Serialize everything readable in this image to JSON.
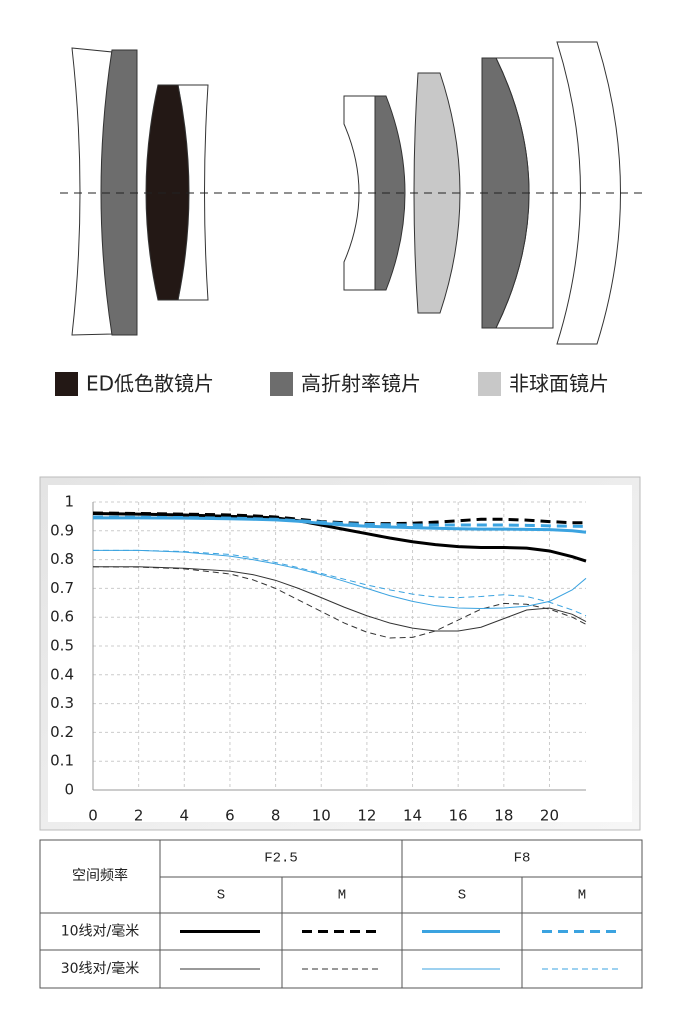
{
  "lens_legend": [
    {
      "label": "ED低色散镜片",
      "color": "#231815"
    },
    {
      "label": "高折射率镜片",
      "color": "#6d6d6d"
    },
    {
      "label": "非球面镜片",
      "color": "#c8c8c8"
    }
  ],
  "chart_data": {
    "type": "line",
    "x": [
      0,
      2,
      4,
      6,
      7,
      8,
      9,
      10,
      11,
      12,
      13,
      14,
      15,
      16,
      17,
      18,
      19,
      20,
      21,
      21.6
    ],
    "xlim": [
      0,
      21.6
    ],
    "xticks": [
      0,
      2,
      4,
      6,
      8,
      10,
      12,
      14,
      16,
      18,
      20
    ],
    "ylim": [
      0,
      1
    ],
    "yticks": [
      0,
      0.1,
      0.2,
      0.3,
      0.4,
      0.5,
      0.6,
      0.7,
      0.8,
      0.9,
      1
    ],
    "grid": true,
    "series": [
      {
        "color": "#000000",
        "width": 3,
        "line_style": "solid",
        "values": [
          0.96,
          0.958,
          0.955,
          0.95,
          0.948,
          0.945,
          0.935,
          0.92,
          0.905,
          0.89,
          0.875,
          0.862,
          0.852,
          0.845,
          0.842,
          0.842,
          0.84,
          0.83,
          0.81,
          0.795
        ]
      },
      {
        "color": "#000000",
        "width": 3,
        "line_style": "dashed",
        "values": [
          0.962,
          0.96,
          0.958,
          0.955,
          0.952,
          0.948,
          0.94,
          0.932,
          0.928,
          0.925,
          0.925,
          0.926,
          0.93,
          0.935,
          0.94,
          0.94,
          0.937,
          0.932,
          0.928,
          0.928
        ]
      },
      {
        "color": "#3ba3e0",
        "width": 3,
        "line_style": "solid",
        "values": [
          0.945,
          0.945,
          0.944,
          0.942,
          0.94,
          0.938,
          0.933,
          0.926,
          0.92,
          0.916,
          0.913,
          0.911,
          0.909,
          0.907,
          0.906,
          0.906,
          0.905,
          0.904,
          0.9,
          0.895
        ]
      },
      {
        "color": "#3ba3e0",
        "width": 3,
        "line_style": "dashed",
        "values": [
          0.948,
          0.947,
          0.946,
          0.944,
          0.942,
          0.94,
          0.935,
          0.93,
          0.925,
          0.922,
          0.921,
          0.92,
          0.92,
          0.92,
          0.92,
          0.92,
          0.919,
          0.917,
          0.916,
          0.915
        ]
      },
      {
        "color": "#333333",
        "width": 1,
        "line_style": "solid",
        "values": [
          0.775,
          0.775,
          0.77,
          0.76,
          0.748,
          0.728,
          0.7,
          0.668,
          0.635,
          0.605,
          0.58,
          0.562,
          0.552,
          0.552,
          0.565,
          0.595,
          0.625,
          0.632,
          0.61,
          0.585
        ]
      },
      {
        "color": "#333333",
        "width": 1,
        "line_style": "dashed",
        "values": [
          0.775,
          0.774,
          0.768,
          0.75,
          0.73,
          0.7,
          0.66,
          0.62,
          0.58,
          0.548,
          0.528,
          0.53,
          0.552,
          0.59,
          0.628,
          0.648,
          0.645,
          0.628,
          0.6,
          0.575
        ]
      },
      {
        "color": "#3ba3e0",
        "width": 1,
        "line_style": "solid",
        "values": [
          0.832,
          0.832,
          0.826,
          0.812,
          0.8,
          0.785,
          0.768,
          0.748,
          0.725,
          0.7,
          0.675,
          0.655,
          0.64,
          0.632,
          0.63,
          0.632,
          0.638,
          0.655,
          0.695,
          0.735
        ]
      },
      {
        "color": "#3ba3e0",
        "width": 1,
        "line_style": "dashed",
        "values": [
          0.832,
          0.832,
          0.828,
          0.818,
          0.806,
          0.79,
          0.772,
          0.752,
          0.732,
          0.712,
          0.695,
          0.68,
          0.67,
          0.668,
          0.672,
          0.678,
          0.672,
          0.652,
          0.625,
          0.605
        ]
      }
    ]
  },
  "legend_table": {
    "header": "空间频率",
    "groups": [
      "F2.5",
      "F8"
    ],
    "subheaders": [
      "S",
      "M",
      "S",
      "M"
    ],
    "rows": [
      "10线对/毫米",
      "30线对/毫米"
    ]
  }
}
